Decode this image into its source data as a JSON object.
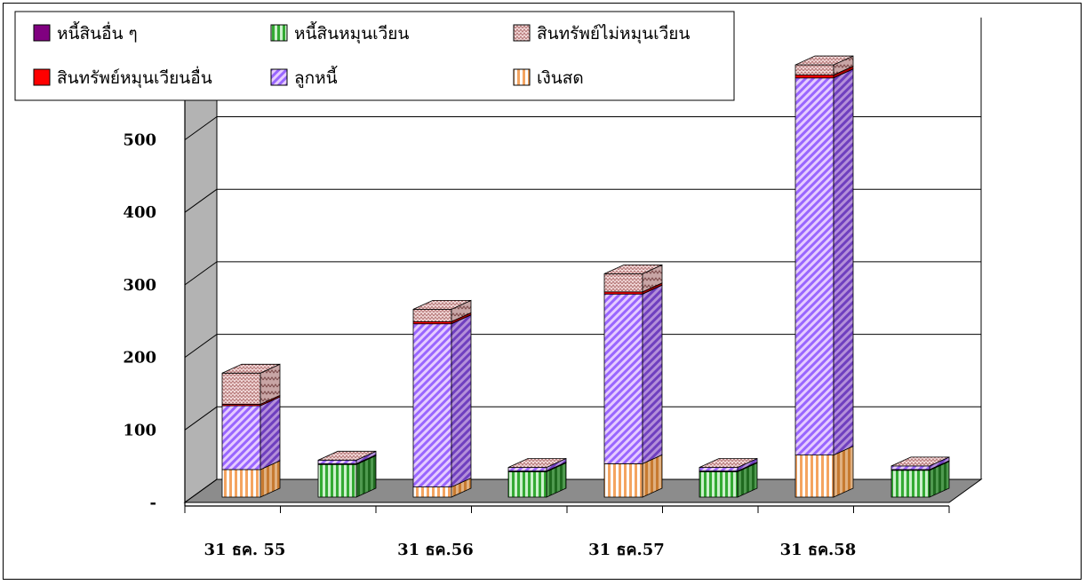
{
  "chart_data": {
    "type": "bar",
    "stacked": true,
    "three_d": true,
    "categories": [
      "31 ธค. 55",
      "31 ธค.56",
      "31 ธค.57",
      "31 ธค.58"
    ],
    "y_tick_labels": [
      "-",
      "100",
      "200",
      "300",
      "400",
      "500"
    ],
    "ylim": [
      0,
      600
    ],
    "grid": true,
    "legend_position": "top-left",
    "asset_series": [
      {
        "name": "เงินสด",
        "color": "#f4a460",
        "pattern": "vertical-stripes",
        "values": [
          38,
          14,
          46,
          58
        ]
      },
      {
        "name": "ลูกหนี้",
        "color": "#cc99ff",
        "pattern": "diagonal-stripes",
        "values": [
          88,
          225,
          234,
          520
        ]
      },
      {
        "name": "สินทรัพย์หมุนเวียนอื่น",
        "color": "#ff0000",
        "pattern": "solid",
        "values": [
          2,
          3,
          3,
          4
        ]
      },
      {
        "name": "สินทรัพย์ไม่หมุนเวียน",
        "color": "#e8c4c4",
        "pattern": "zigzag",
        "values": [
          43,
          17,
          25,
          14
        ]
      }
    ],
    "liability_series": [
      {
        "name": "หนี้สินหมุนเวียน",
        "color": "#66cc66",
        "pattern": "vertical-stripes",
        "values": [
          45,
          35,
          35,
          37
        ]
      },
      {
        "name": "หนี้สินอื่น ๆ",
        "color": "#800080",
        "pattern": "solid",
        "values": [
          1,
          1,
          1,
          1
        ]
      }
    ],
    "liability_top_series": {
      "name": "ลูกหนี้",
      "values": [
        5,
        5,
        5,
        5
      ]
    }
  },
  "legend": [
    {
      "label": "หนี้สินอื่น ๆ",
      "icon": "purple-solid"
    },
    {
      "label": "หนี้สินหมุนเวียน",
      "icon": "green-stripes"
    },
    {
      "label": "สินทรัพย์ไม่หมุนเวียน",
      "icon": "pink-zigzag"
    },
    {
      "label": "สินทรัพย์หมุนเวียนอื่น",
      "icon": "red-solid"
    },
    {
      "label": "ลูกหนี้",
      "icon": "lavender-diagonal"
    },
    {
      "label": "เงินสด",
      "icon": "orange-stripes"
    }
  ]
}
